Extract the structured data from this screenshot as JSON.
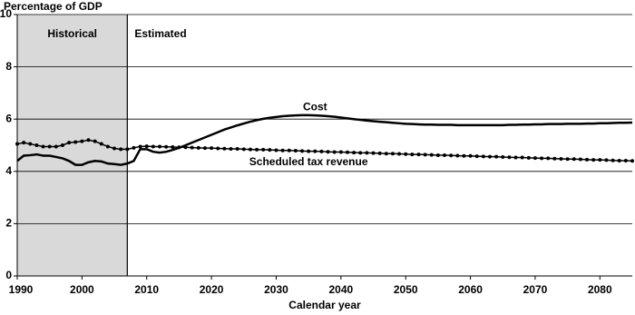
{
  "chart_data": {
    "type": "line",
    "y_label": "Percentage of GDP",
    "x_label": "Calendar year",
    "xlim": [
      1990,
      2085
    ],
    "xticks": [
      1990,
      2000,
      2010,
      2020,
      2030,
      2040,
      2050,
      2060,
      2070,
      2080
    ],
    "ylim": [
      0,
      10
    ],
    "yticks": [
      0,
      2,
      4,
      6,
      8,
      10
    ],
    "grid": true,
    "regions": [
      {
        "label": "Historical",
        "x": [
          1990,
          2007
        ],
        "color": "#d9d9d9"
      },
      {
        "label": "Estimated",
        "x": [
          2007,
          2085
        ]
      }
    ],
    "x": [
      1990,
      1991,
      1992,
      1993,
      1994,
      1995,
      1996,
      1997,
      1998,
      1999,
      2000,
      2001,
      2002,
      2003,
      2004,
      2005,
      2006,
      2007,
      2008,
      2009,
      2010,
      2011,
      2012,
      2013,
      2014,
      2015,
      2016,
      2017,
      2018,
      2019,
      2020,
      2021,
      2022,
      2023,
      2024,
      2025,
      2026,
      2027,
      2028,
      2029,
      2030,
      2031,
      2032,
      2033,
      2034,
      2035,
      2036,
      2037,
      2038,
      2039,
      2040,
      2041,
      2042,
      2043,
      2044,
      2045,
      2046,
      2047,
      2048,
      2049,
      2050,
      2051,
      2052,
      2053,
      2054,
      2055,
      2056,
      2057,
      2058,
      2059,
      2060,
      2061,
      2062,
      2063,
      2064,
      2065,
      2066,
      2067,
      2068,
      2069,
      2070,
      2071,
      2072,
      2073,
      2074,
      2075,
      2076,
      2077,
      2078,
      2079,
      2080,
      2081,
      2082,
      2083,
      2084,
      2085
    ],
    "series": [
      {
        "name": "Cost",
        "color": "#000000",
        "markers": false,
        "values": [
          4.4,
          4.6,
          4.62,
          4.65,
          4.6,
          4.6,
          4.55,
          4.5,
          4.4,
          4.25,
          4.25,
          4.35,
          4.4,
          4.38,
          4.3,
          4.28,
          4.25,
          4.3,
          4.4,
          4.85,
          4.85,
          4.75,
          4.72,
          4.75,
          4.82,
          4.9,
          5.0,
          5.1,
          5.2,
          5.3,
          5.4,
          5.5,
          5.6,
          5.68,
          5.76,
          5.83,
          5.9,
          5.96,
          6.01,
          6.05,
          6.08,
          6.11,
          6.13,
          6.14,
          6.15,
          6.15,
          6.14,
          6.13,
          6.11,
          6.09,
          6.06,
          6.03,
          6.0,
          5.97,
          5.94,
          5.92,
          5.9,
          5.88,
          5.86,
          5.84,
          5.82,
          5.81,
          5.8,
          5.79,
          5.79,
          5.78,
          5.78,
          5.78,
          5.77,
          5.77,
          5.77,
          5.77,
          5.77,
          5.77,
          5.77,
          5.77,
          5.78,
          5.78,
          5.79,
          5.79,
          5.8,
          5.8,
          5.81,
          5.81,
          5.81,
          5.82,
          5.82,
          5.82,
          5.83,
          5.83,
          5.84,
          5.84,
          5.85,
          5.86,
          5.86,
          5.87
        ]
      },
      {
        "name": "Scheduled tax revenue",
        "color": "#000000",
        "markers": true,
        "values": [
          5.05,
          5.1,
          5.05,
          5.0,
          4.95,
          4.95,
          4.95,
          5.0,
          5.1,
          5.12,
          5.15,
          5.2,
          5.15,
          5.05,
          4.95,
          4.88,
          4.85,
          4.85,
          4.9,
          4.95,
          4.96,
          4.95,
          4.95,
          4.94,
          4.93,
          4.92,
          4.92,
          4.91,
          4.9,
          4.89,
          4.89,
          4.88,
          4.87,
          4.86,
          4.86,
          4.85,
          4.84,
          4.83,
          4.83,
          4.82,
          4.81,
          4.8,
          4.8,
          4.79,
          4.78,
          4.77,
          4.77,
          4.76,
          4.75,
          4.74,
          4.74,
          4.73,
          4.72,
          4.71,
          4.71,
          4.7,
          4.69,
          4.68,
          4.68,
          4.67,
          4.66,
          4.65,
          4.65,
          4.64,
          4.63,
          4.62,
          4.62,
          4.61,
          4.6,
          4.59,
          4.59,
          4.58,
          4.57,
          4.56,
          4.56,
          4.55,
          4.54,
          4.53,
          4.53,
          4.52,
          4.51,
          4.5,
          4.5,
          4.49,
          4.48,
          4.47,
          4.47,
          4.46,
          4.45,
          4.44,
          4.44,
          4.43,
          4.42,
          4.41,
          4.41,
          4.4
        ]
      }
    ]
  }
}
